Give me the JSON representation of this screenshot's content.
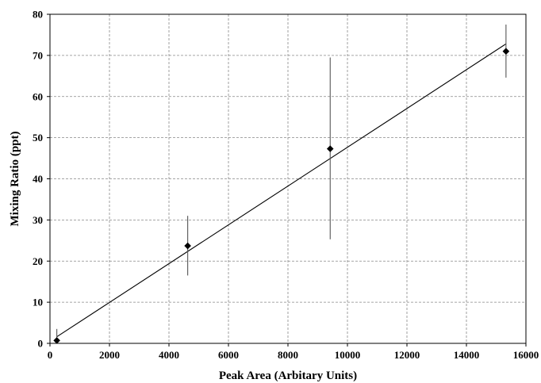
{
  "chart_data": {
    "type": "scatter",
    "title": "",
    "xlabel": "Peak Area (Arbitary Units)",
    "ylabel": "Mixing Ratio (ppt)",
    "xlim": [
      0,
      16000
    ],
    "ylim": [
      0,
      80
    ],
    "x_ticks": [
      0,
      2000,
      4000,
      6000,
      8000,
      10000,
      12000,
      14000,
      16000
    ],
    "y_ticks": [
      0,
      10,
      20,
      30,
      40,
      50,
      60,
      70,
      80
    ],
    "x_tick_labels": [
      "0",
      "2000",
      "4000",
      "6000",
      "8000",
      "10000",
      "12000",
      "14000",
      "16000"
    ],
    "y_tick_labels": [
      "0",
      "10",
      "20",
      "30",
      "40",
      "50",
      "60",
      "70",
      "80"
    ],
    "grid": true,
    "grid_style": "dashed",
    "series": [
      {
        "marker": "diamond",
        "color": "#000000",
        "points": [
          {
            "x": 230,
            "y": 0.7,
            "y_low": 0,
            "y_high": 3.5
          },
          {
            "x": 4630,
            "y": 23.7,
            "y_low": 16.5,
            "y_high": 31
          },
          {
            "x": 9420,
            "y": 47.3,
            "y_low": 25.3,
            "y_high": 69.5
          },
          {
            "x": 15330,
            "y": 71,
            "y_low": 64.6,
            "y_high": 77.5
          }
        ]
      }
    ],
    "trendline": {
      "type": "linear",
      "x": [
        230,
        15330
      ],
      "y": [
        1.6,
        72.8
      ],
      "color": "#000000"
    }
  }
}
